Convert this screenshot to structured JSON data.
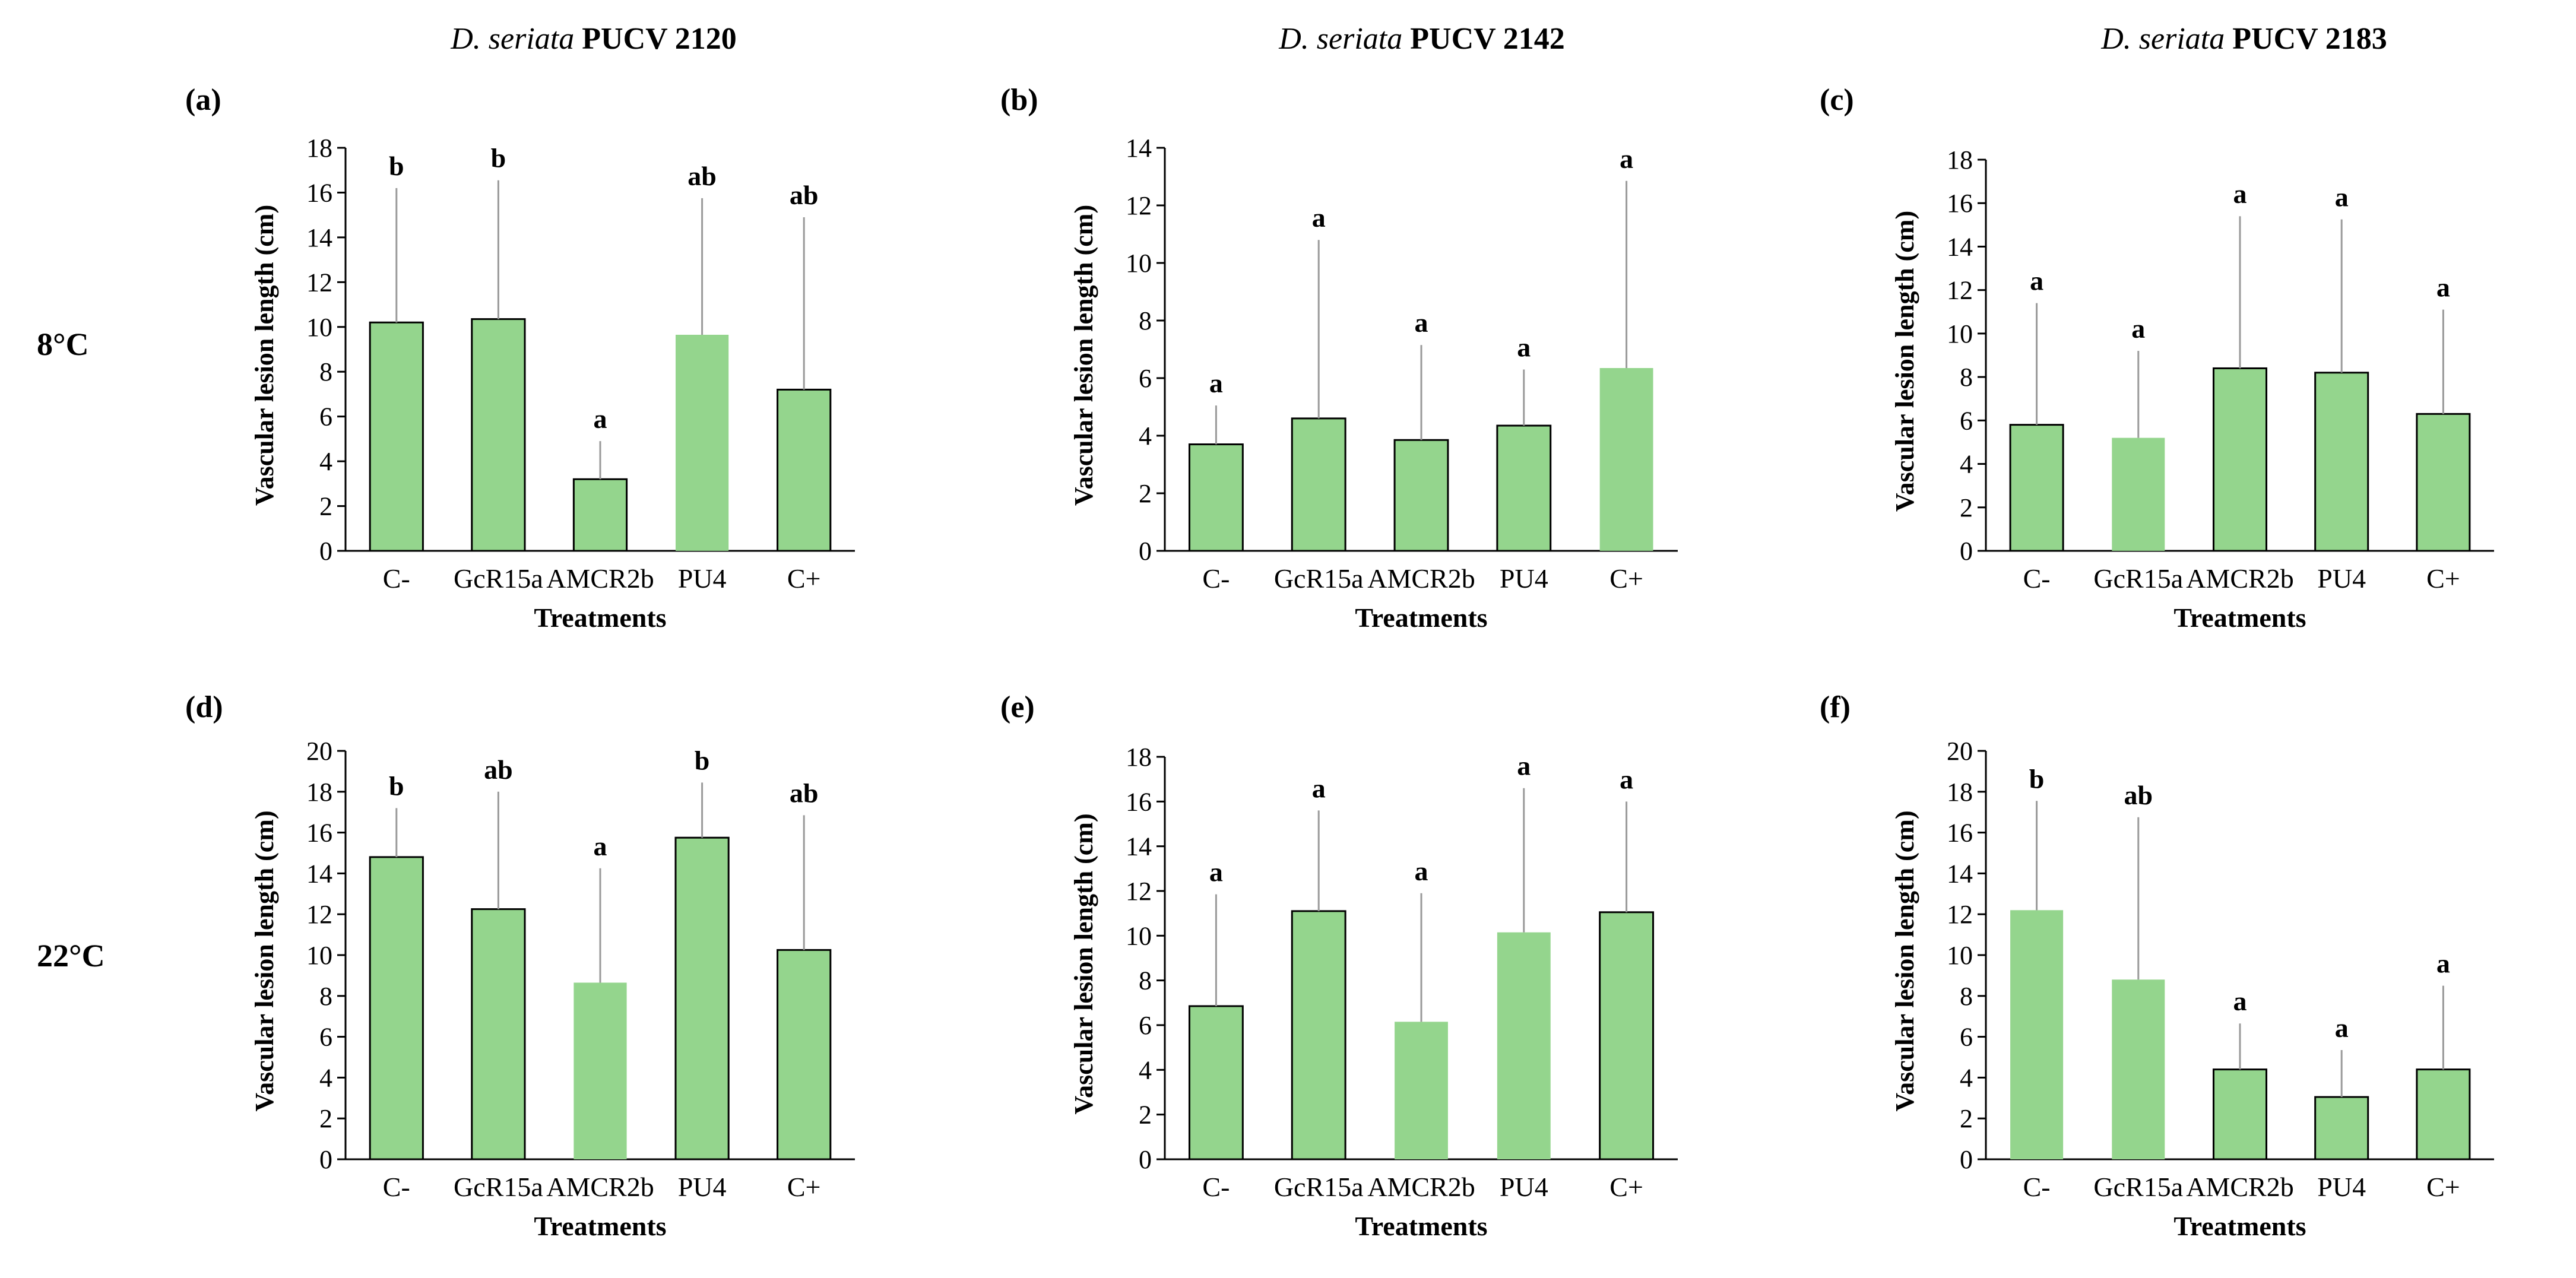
{
  "column_headers": [
    {
      "italic": "D. seriata",
      "rest": " PUCV 2120"
    },
    {
      "italic": "D. seriata",
      "rest": " PUCV 2142"
    },
    {
      "italic": "D. seriata",
      "rest": " PUCV 2183"
    }
  ],
  "row_headers": [
    "8°C",
    "22°C"
  ],
  "colors": {
    "bar_fill": "#94d58d",
    "axis": "#000000",
    "bar_edge": "#000000"
  },
  "chart_data": [
    {
      "type": "bar",
      "label": "(a)",
      "categories": [
        "C-",
        "GcR15a",
        "AMCR2b",
        "PU4",
        "C+"
      ],
      "values": [
        10.2,
        10.35,
        3.2,
        9.65,
        7.2
      ],
      "errors": [
        6.0,
        6.2,
        1.7,
        6.1,
        7.7
      ],
      "letters": [
        "b",
        "b",
        "a",
        "ab",
        "ab"
      ],
      "ylim": [
        0,
        18
      ],
      "ystep": 2,
      "xlabel": "Treatments",
      "ylabel": "Vascular lesion length (cm)"
    },
    {
      "type": "bar",
      "label": "(b)",
      "categories": [
        "C-",
        "GcR15a",
        "AMCR2b",
        "PU4",
        "C+"
      ],
      "values": [
        3.7,
        4.6,
        3.85,
        4.35,
        6.35
      ],
      "errors": [
        1.35,
        6.2,
        3.3,
        1.95,
        6.5
      ],
      "letters": [
        "a",
        "a",
        "a",
        "a",
        "a"
      ],
      "ylim": [
        0,
        14
      ],
      "ystep": 2,
      "xlabel": "Treatments",
      "ylabel": "Vascular lesion length (cm)"
    },
    {
      "type": "bar",
      "label": "(c)",
      "categories": [
        "C-",
        "GcR15a",
        "AMCR2b",
        "PU4",
        "C+"
      ],
      "values": [
        5.8,
        5.2,
        8.4,
        8.2,
        6.3
      ],
      "errors": [
        5.6,
        4.0,
        7.0,
        7.05,
        4.8
      ],
      "letters": [
        "a",
        "a",
        "a",
        "a",
        "a"
      ],
      "ylim": [
        0,
        18
      ],
      "ystep": 2,
      "xlabel": "Treatments",
      "ylabel": "Vascular lesion length (cm)"
    },
    {
      "type": "bar",
      "label": "(d)",
      "categories": [
        "C-",
        "GcR15a",
        "AMCR2b",
        "PU4",
        "C+"
      ],
      "values": [
        14.8,
        12.25,
        8.65,
        15.75,
        10.25
      ],
      "errors": [
        2.4,
        5.75,
        5.6,
        2.7,
        6.6
      ],
      "letters": [
        "b",
        "ab",
        "a",
        "b",
        "ab"
      ],
      "ylim": [
        0,
        20
      ],
      "ystep": 2,
      "xlabel": "Treatments",
      "ylabel": "Vascular lesion length (cm)"
    },
    {
      "type": "bar",
      "label": "(e)",
      "categories": [
        "C-",
        "GcR15a",
        "AMCR2b",
        "PU4",
        "C+"
      ],
      "values": [
        6.85,
        11.1,
        6.15,
        10.15,
        11.05
      ],
      "errors": [
        5.0,
        4.5,
        5.75,
        6.45,
        4.95
      ],
      "letters": [
        "a",
        "a",
        "a",
        "a",
        "a"
      ],
      "ylim": [
        0,
        18
      ],
      "ystep": 2,
      "xlabel": "Treatments",
      "ylabel": "Vascular lesion length (cm)"
    },
    {
      "type": "bar",
      "label": "(f)",
      "categories": [
        "C-",
        "GcR15a",
        "AMCR2b",
        "PU4",
        "C+"
      ],
      "values": [
        12.2,
        8.8,
        4.4,
        3.05,
        4.4
      ],
      "errors": [
        5.35,
        7.95,
        2.25,
        2.3,
        4.1
      ],
      "letters": [
        "b",
        "ab",
        "a",
        "a",
        "a"
      ],
      "ylim": [
        0,
        20
      ],
      "ystep": 2,
      "xlabel": "Treatments",
      "ylabel": "Vascular lesion length (cm)"
    }
  ]
}
